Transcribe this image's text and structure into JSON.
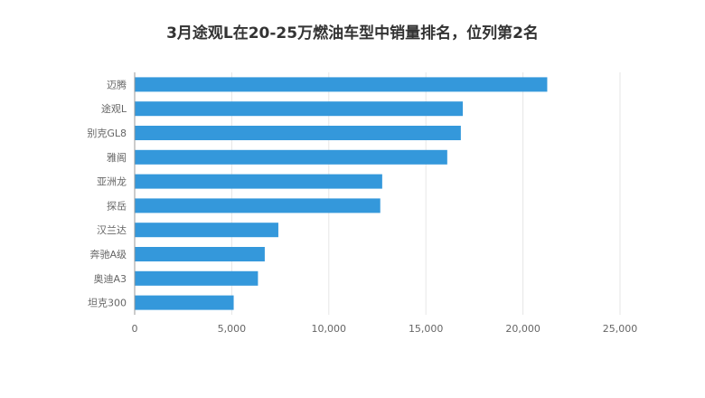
{
  "chart_data": {
    "type": "bar",
    "orientation": "horizontal",
    "title": "3月途观L在20-25万燃油车型中销量排名，位列第2名",
    "categories": [
      "迈腾",
      "途观L",
      "别克GL8",
      "雅阁",
      "亚洲龙",
      "探岳",
      "汉兰达",
      "奔驰A级",
      "奥迪A3",
      "坦克300"
    ],
    "values": [
      21250,
      16900,
      16800,
      16100,
      12750,
      12650,
      7400,
      6700,
      6350,
      5100
    ],
    "xlim": [
      0,
      25000
    ],
    "xticks": [
      0,
      5000,
      10000,
      15000,
      20000,
      25000
    ],
    "xtick_labels": [
      "0",
      "5,000",
      "10,000",
      "15,000",
      "20,000",
      "25,000"
    ],
    "xlabel": "",
    "ylabel": "",
    "grid": true,
    "legend": "none",
    "bar_color": "#3498db"
  }
}
